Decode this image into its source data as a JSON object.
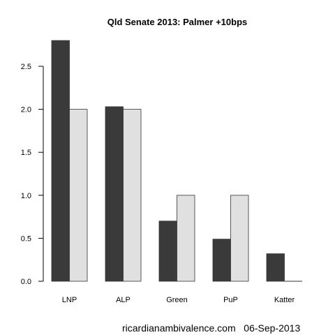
{
  "chart_data": {
    "type": "bar",
    "title": "Qld Senate 2013: Palmer +10bps",
    "categories": [
      "LNP",
      "ALP",
      "Green",
      "PuP",
      "Katter"
    ],
    "series": [
      {
        "values": [
          2.8,
          2.03,
          0.7,
          0.49,
          0.32
        ],
        "color": "#3a3a3a"
      },
      {
        "values": [
          2.0,
          2.0,
          1.0,
          1.0,
          0.0
        ],
        "color": "#e0e0e0"
      }
    ],
    "yticks": [
      "0.0",
      "0.5",
      "1.0",
      "1.5",
      "2.0",
      "2.5"
    ],
    "ylim": [
      0,
      2.8
    ],
    "grid": false,
    "xlabel": "",
    "ylabel": ""
  },
  "footer": {
    "caption": "ricardianambivalence.com   06-Sep-2013"
  }
}
